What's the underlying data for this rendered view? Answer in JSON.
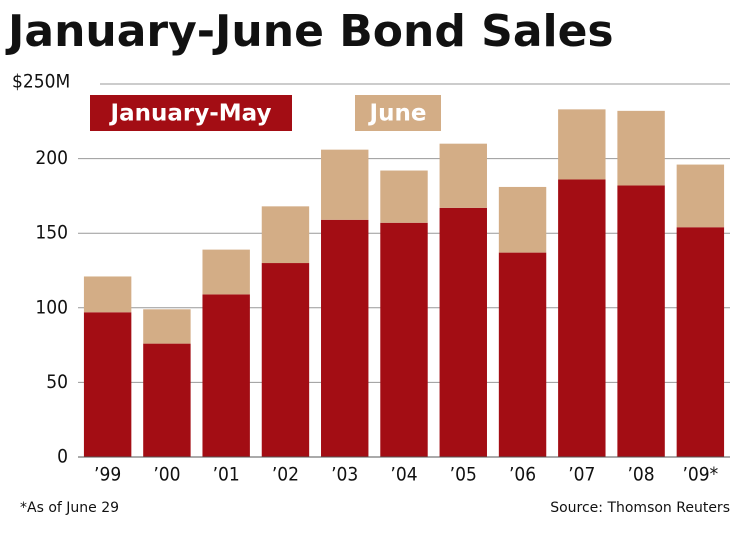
{
  "chart_data": {
    "type": "stacked_bar",
    "title": "January-June Bond Sales",
    "categories": [
      "’99",
      "’00",
      "’01",
      "’02",
      "’03",
      "’04",
      "’05",
      "’06",
      "’07",
      "’08",
      "’09*"
    ],
    "series": [
      {
        "name": "January-May",
        "color": "#a30d14",
        "values": [
          97,
          76,
          109,
          130,
          159,
          157,
          167,
          137,
          186,
          182,
          154
        ]
      },
      {
        "name": "June",
        "color": "#d3ad86",
        "values": [
          24,
          23,
          30,
          38,
          47,
          35,
          43,
          44,
          47,
          50,
          42
        ]
      }
    ],
    "ylim": [
      0,
      250
    ],
    "yticks": [
      0,
      50,
      100,
      150,
      200,
      {
        "value": 250,
        "label": "$250M"
      }
    ],
    "grid": true,
    "footnote": "*As of June 29",
    "source": "Source: Thomson Reuters"
  }
}
